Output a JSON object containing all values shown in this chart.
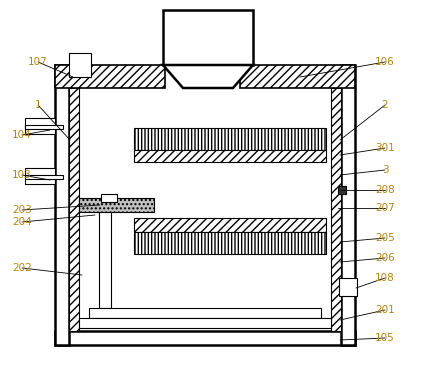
{
  "bg_color": "#ffffff",
  "line_color": "#000000",
  "label_color": "#b8860b",
  "label_fontsize": 7.5,
  "fig_width": 4.22,
  "fig_height": 3.82
}
